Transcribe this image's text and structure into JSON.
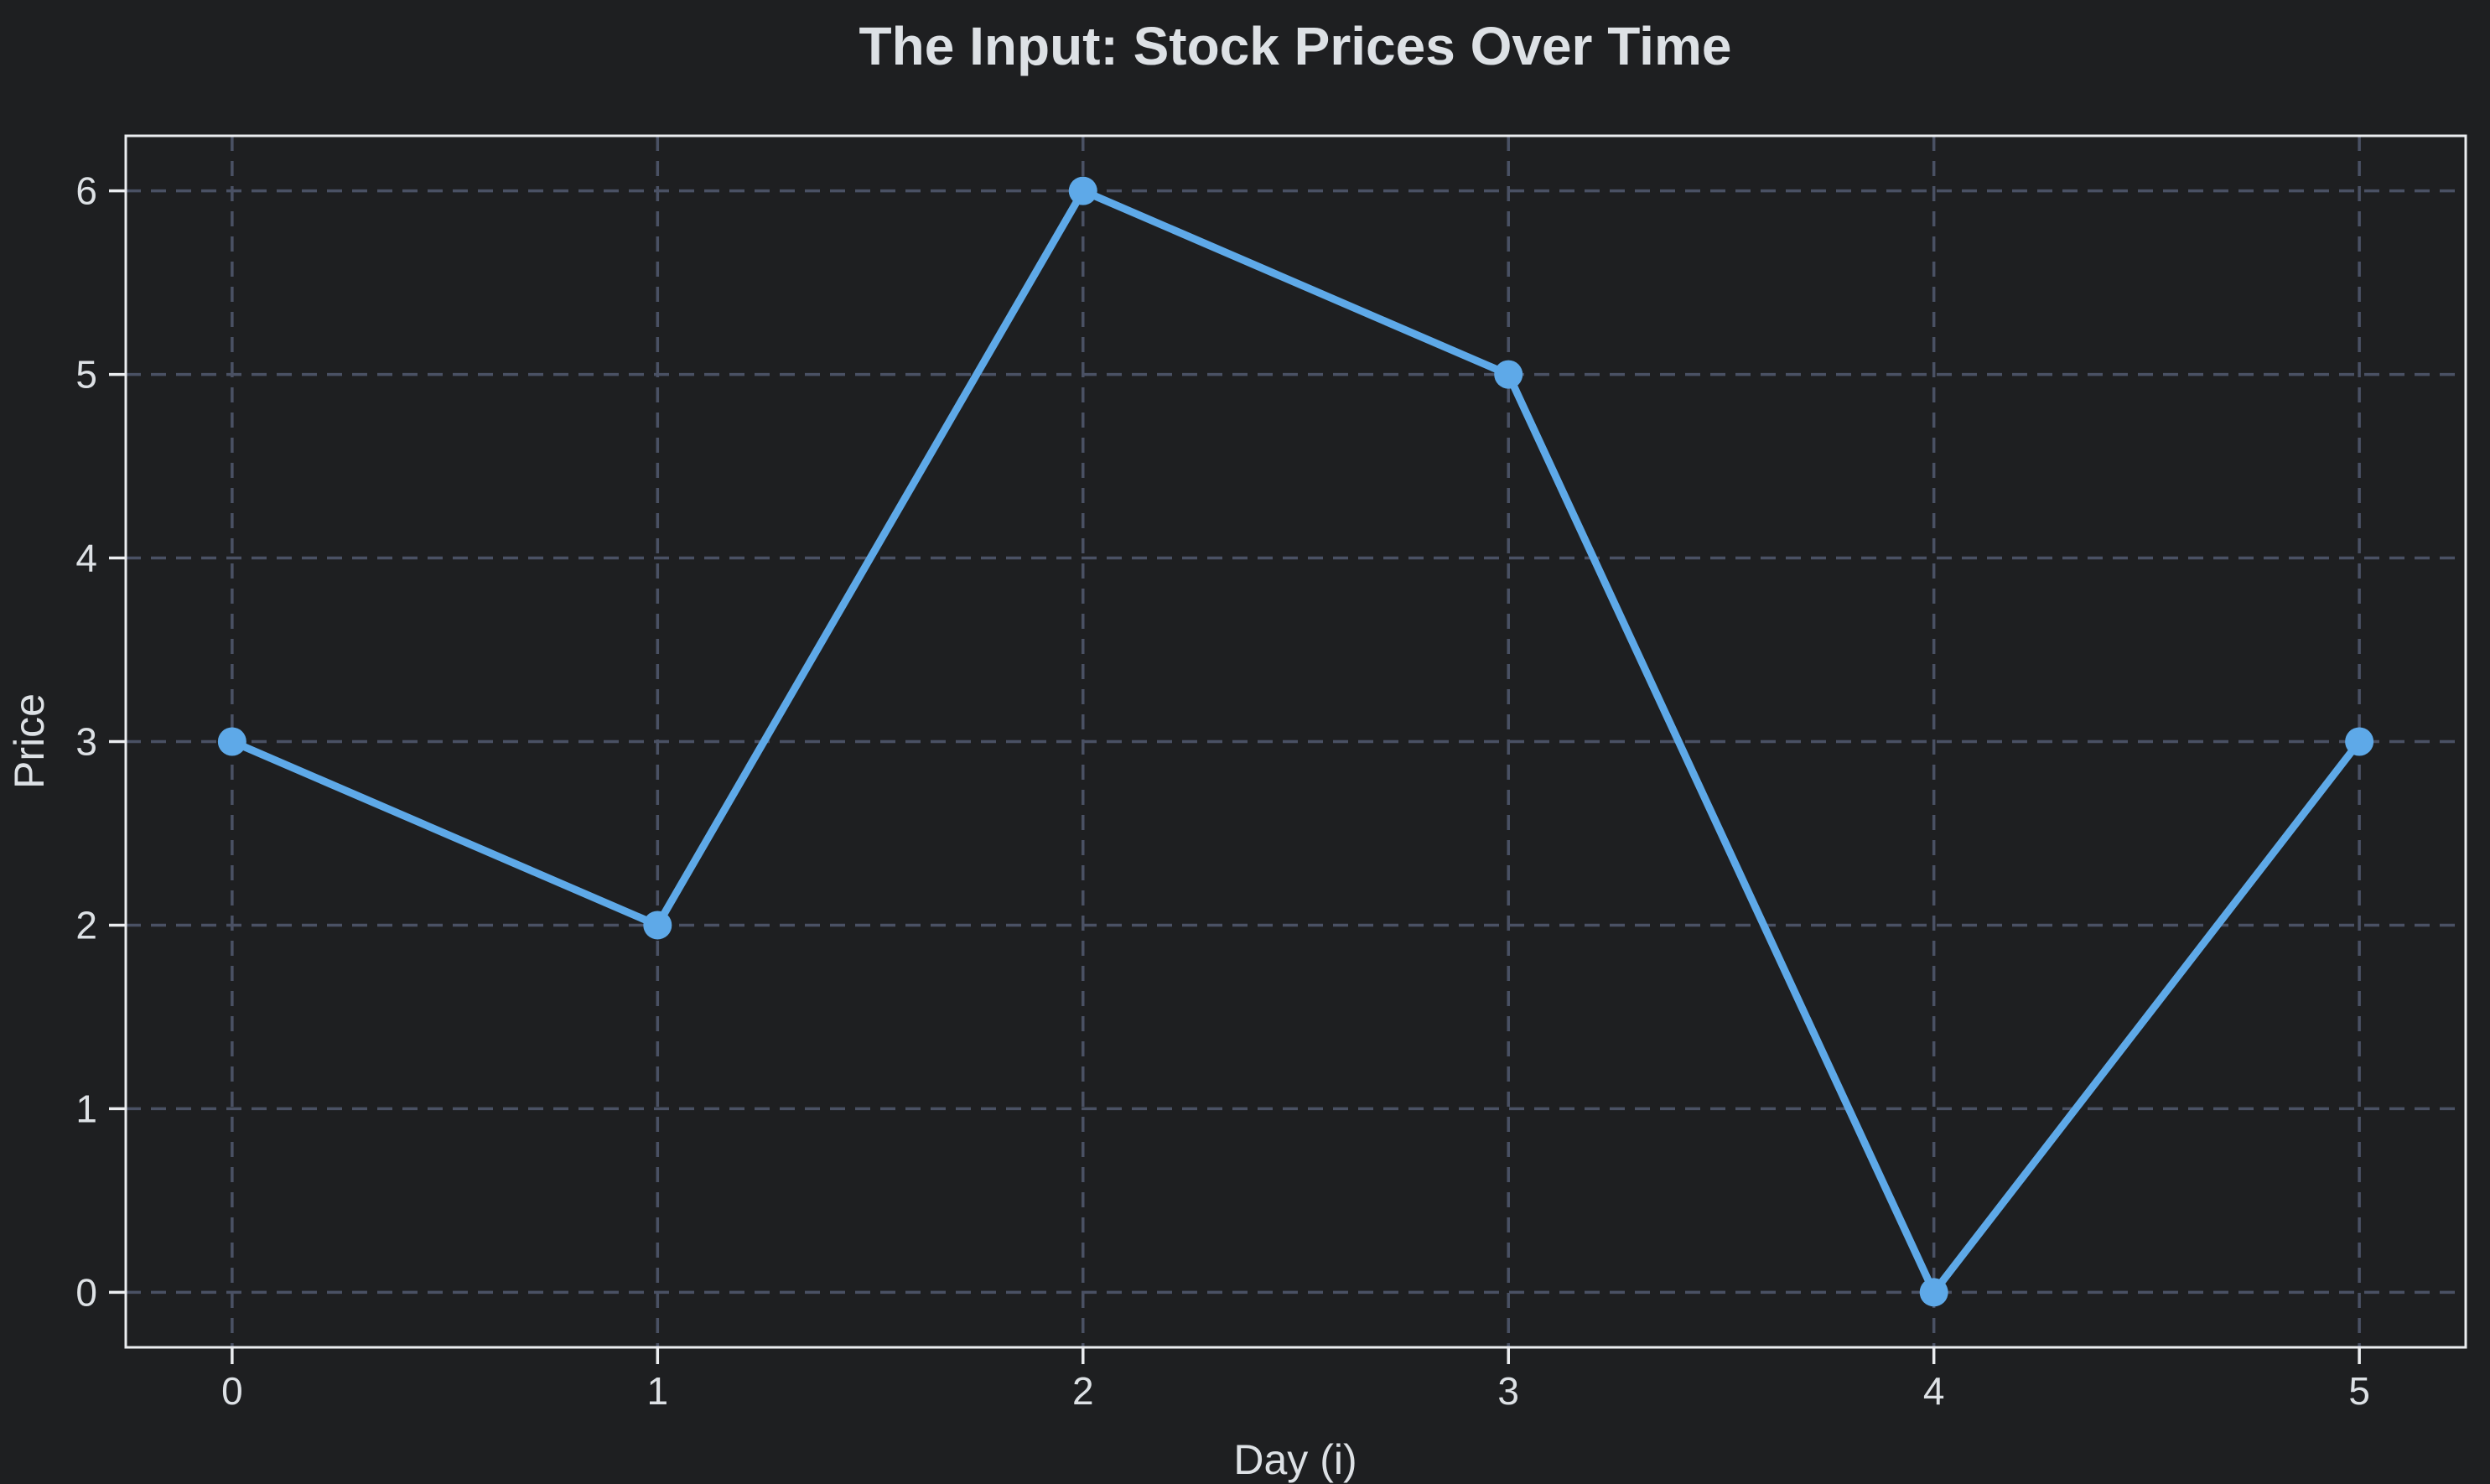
{
  "chart_data": {
    "type": "line",
    "title": "The Input: Stock Prices Over Time",
    "xlabel": "Day (i)",
    "ylabel": "Price",
    "x": [
      0,
      1,
      2,
      3,
      4,
      5
    ],
    "series": [
      {
        "name": "Price",
        "values": [
          3,
          2,
          6,
          5,
          0,
          3
        ]
      }
    ],
    "xticks": [
      "0",
      "1",
      "2",
      "3",
      "4",
      "5"
    ],
    "yticks": [
      "0",
      "1",
      "2",
      "3",
      "4",
      "5",
      "6"
    ],
    "xlim": [
      -0.25,
      5.25
    ],
    "ylim": [
      -0.3,
      6.3
    ],
    "grid": true,
    "grid_style": "dashed",
    "legend_position": "none",
    "marker": "circle",
    "colors": {
      "line": "#5EA9E8",
      "marker": "#5EA9E8",
      "background": "#1e1f21",
      "grid": "#4a5164",
      "axis": "#ebedf0",
      "text": "#dde1e5"
    }
  }
}
